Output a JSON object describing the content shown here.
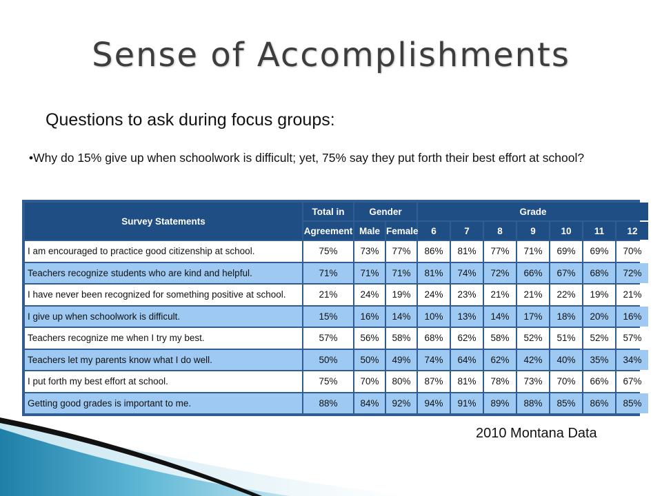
{
  "slide": {
    "title": "Sense of Accomplishments",
    "subtitle": "Questions to ask during focus groups:",
    "bullet": "•Why do 15% give up when schoolwork is difficult; yet, 75% say they put forth their best effort at school?",
    "footer": "2010 Montana Data"
  },
  "table": {
    "headers": {
      "statements": "Survey Statements",
      "total_line1": "Total in",
      "total_line2": "Agreement",
      "gender": "Gender",
      "male": "Male",
      "female": "Female",
      "grade": "Grade",
      "grades": [
        "6",
        "7",
        "8",
        "9",
        "10",
        "11",
        "12"
      ]
    },
    "rows": [
      {
        "statement": "I am encouraged to practice good citizenship at school.",
        "total": "75%",
        "male": "73%",
        "female": "77%",
        "grades": [
          "86%",
          "81%",
          "77%",
          "71%",
          "69%",
          "69%",
          "70%"
        ]
      },
      {
        "statement": "Teachers recognize students who are kind and helpful.",
        "total": "71%",
        "male": "71%",
        "female": "71%",
        "grades": [
          "81%",
          "74%",
          "72%",
          "66%",
          "67%",
          "68%",
          "72%"
        ]
      },
      {
        "statement": "I have never been recognized for something positive at school.",
        "total": "21%",
        "male": "24%",
        "female": "19%",
        "grades": [
          "24%",
          "23%",
          "21%",
          "21%",
          "22%",
          "19%",
          "21%"
        ]
      },
      {
        "statement": "I give up when schoolwork is difficult.",
        "total": "15%",
        "male": "16%",
        "female": "14%",
        "grades": [
          "10%",
          "13%",
          "14%",
          "17%",
          "18%",
          "20%",
          "16%"
        ]
      },
      {
        "statement": "Teachers recognize me when I try my best.",
        "total": "57%",
        "male": "56%",
        "female": "58%",
        "grades": [
          "68%",
          "62%",
          "58%",
          "52%",
          "51%",
          "52%",
          "57%"
        ]
      },
      {
        "statement": "Teachers let my parents know what I do well.",
        "total": "50%",
        "male": "50%",
        "female": "49%",
        "grades": [
          "74%",
          "64%",
          "62%",
          "42%",
          "40%",
          "35%",
          "34%"
        ]
      },
      {
        "statement": "I put forth my best effort at school.",
        "total": "75%",
        "male": "70%",
        "female": "80%",
        "grades": [
          "87%",
          "81%",
          "78%",
          "73%",
          "70%",
          "66%",
          "67%"
        ]
      },
      {
        "statement": "Getting good grades is important to me.",
        "total": "88%",
        "male": "84%",
        "female": "92%",
        "grades": [
          "94%",
          "91%",
          "89%",
          "88%",
          "85%",
          "86%",
          "85%"
        ]
      }
    ]
  },
  "colors": {
    "header_bg": "#1f4e84",
    "row_alt": "#9dc9f2",
    "title_text": "#3d3d3d"
  }
}
